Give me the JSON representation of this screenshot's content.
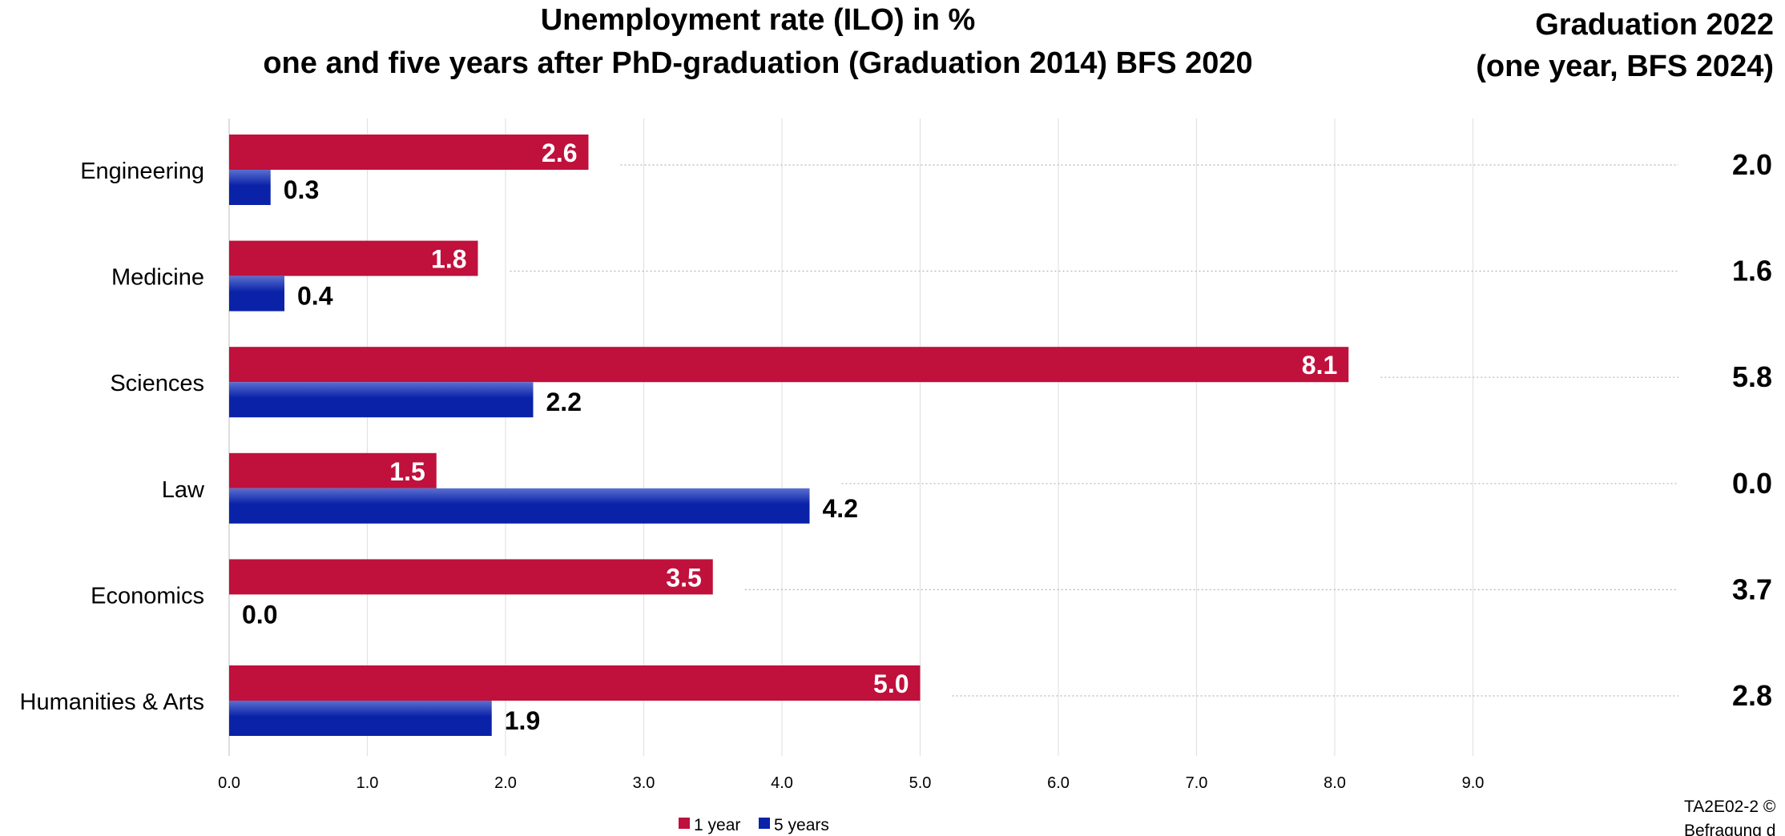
{
  "chart_data": {
    "type": "bar",
    "orientation": "horizontal",
    "title_line1": "Unemployment rate (ILO) in %",
    "title_line2": "one and five years after PhD-graduation (Graduation 2014) BFS 2020",
    "categories": [
      "Engineering",
      "Medicine",
      "Sciences",
      "Law",
      "Economics",
      "Humanities & Arts"
    ],
    "series": [
      {
        "name": "1 year",
        "color": "#c0103c",
        "values": [
          2.6,
          1.8,
          8.1,
          1.5,
          3.5,
          5.0
        ]
      },
      {
        "name": "5 years",
        "color": "#0a22a8",
        "values": [
          0.3,
          0.4,
          2.2,
          4.2,
          0.0,
          1.9
        ]
      }
    ],
    "xlim": [
      0,
      9
    ],
    "x_ticks": [
      "0.0",
      "1.0",
      "2.0",
      "3.0",
      "4.0",
      "5.0",
      "6.0",
      "7.0",
      "8.0",
      "9.0"
    ],
    "grid": true,
    "legend_position": "bottom",
    "side_column": {
      "title_line1": "Graduation 2022",
      "title_line2": "(one year, BFS 2024)",
      "values": [
        "2.0",
        "1.6",
        "5.8",
        "0.0",
        "3.7",
        "2.8"
      ]
    },
    "footnote_line1": "TA2E02-2 ©",
    "footnote_line2": "Befragung d"
  }
}
